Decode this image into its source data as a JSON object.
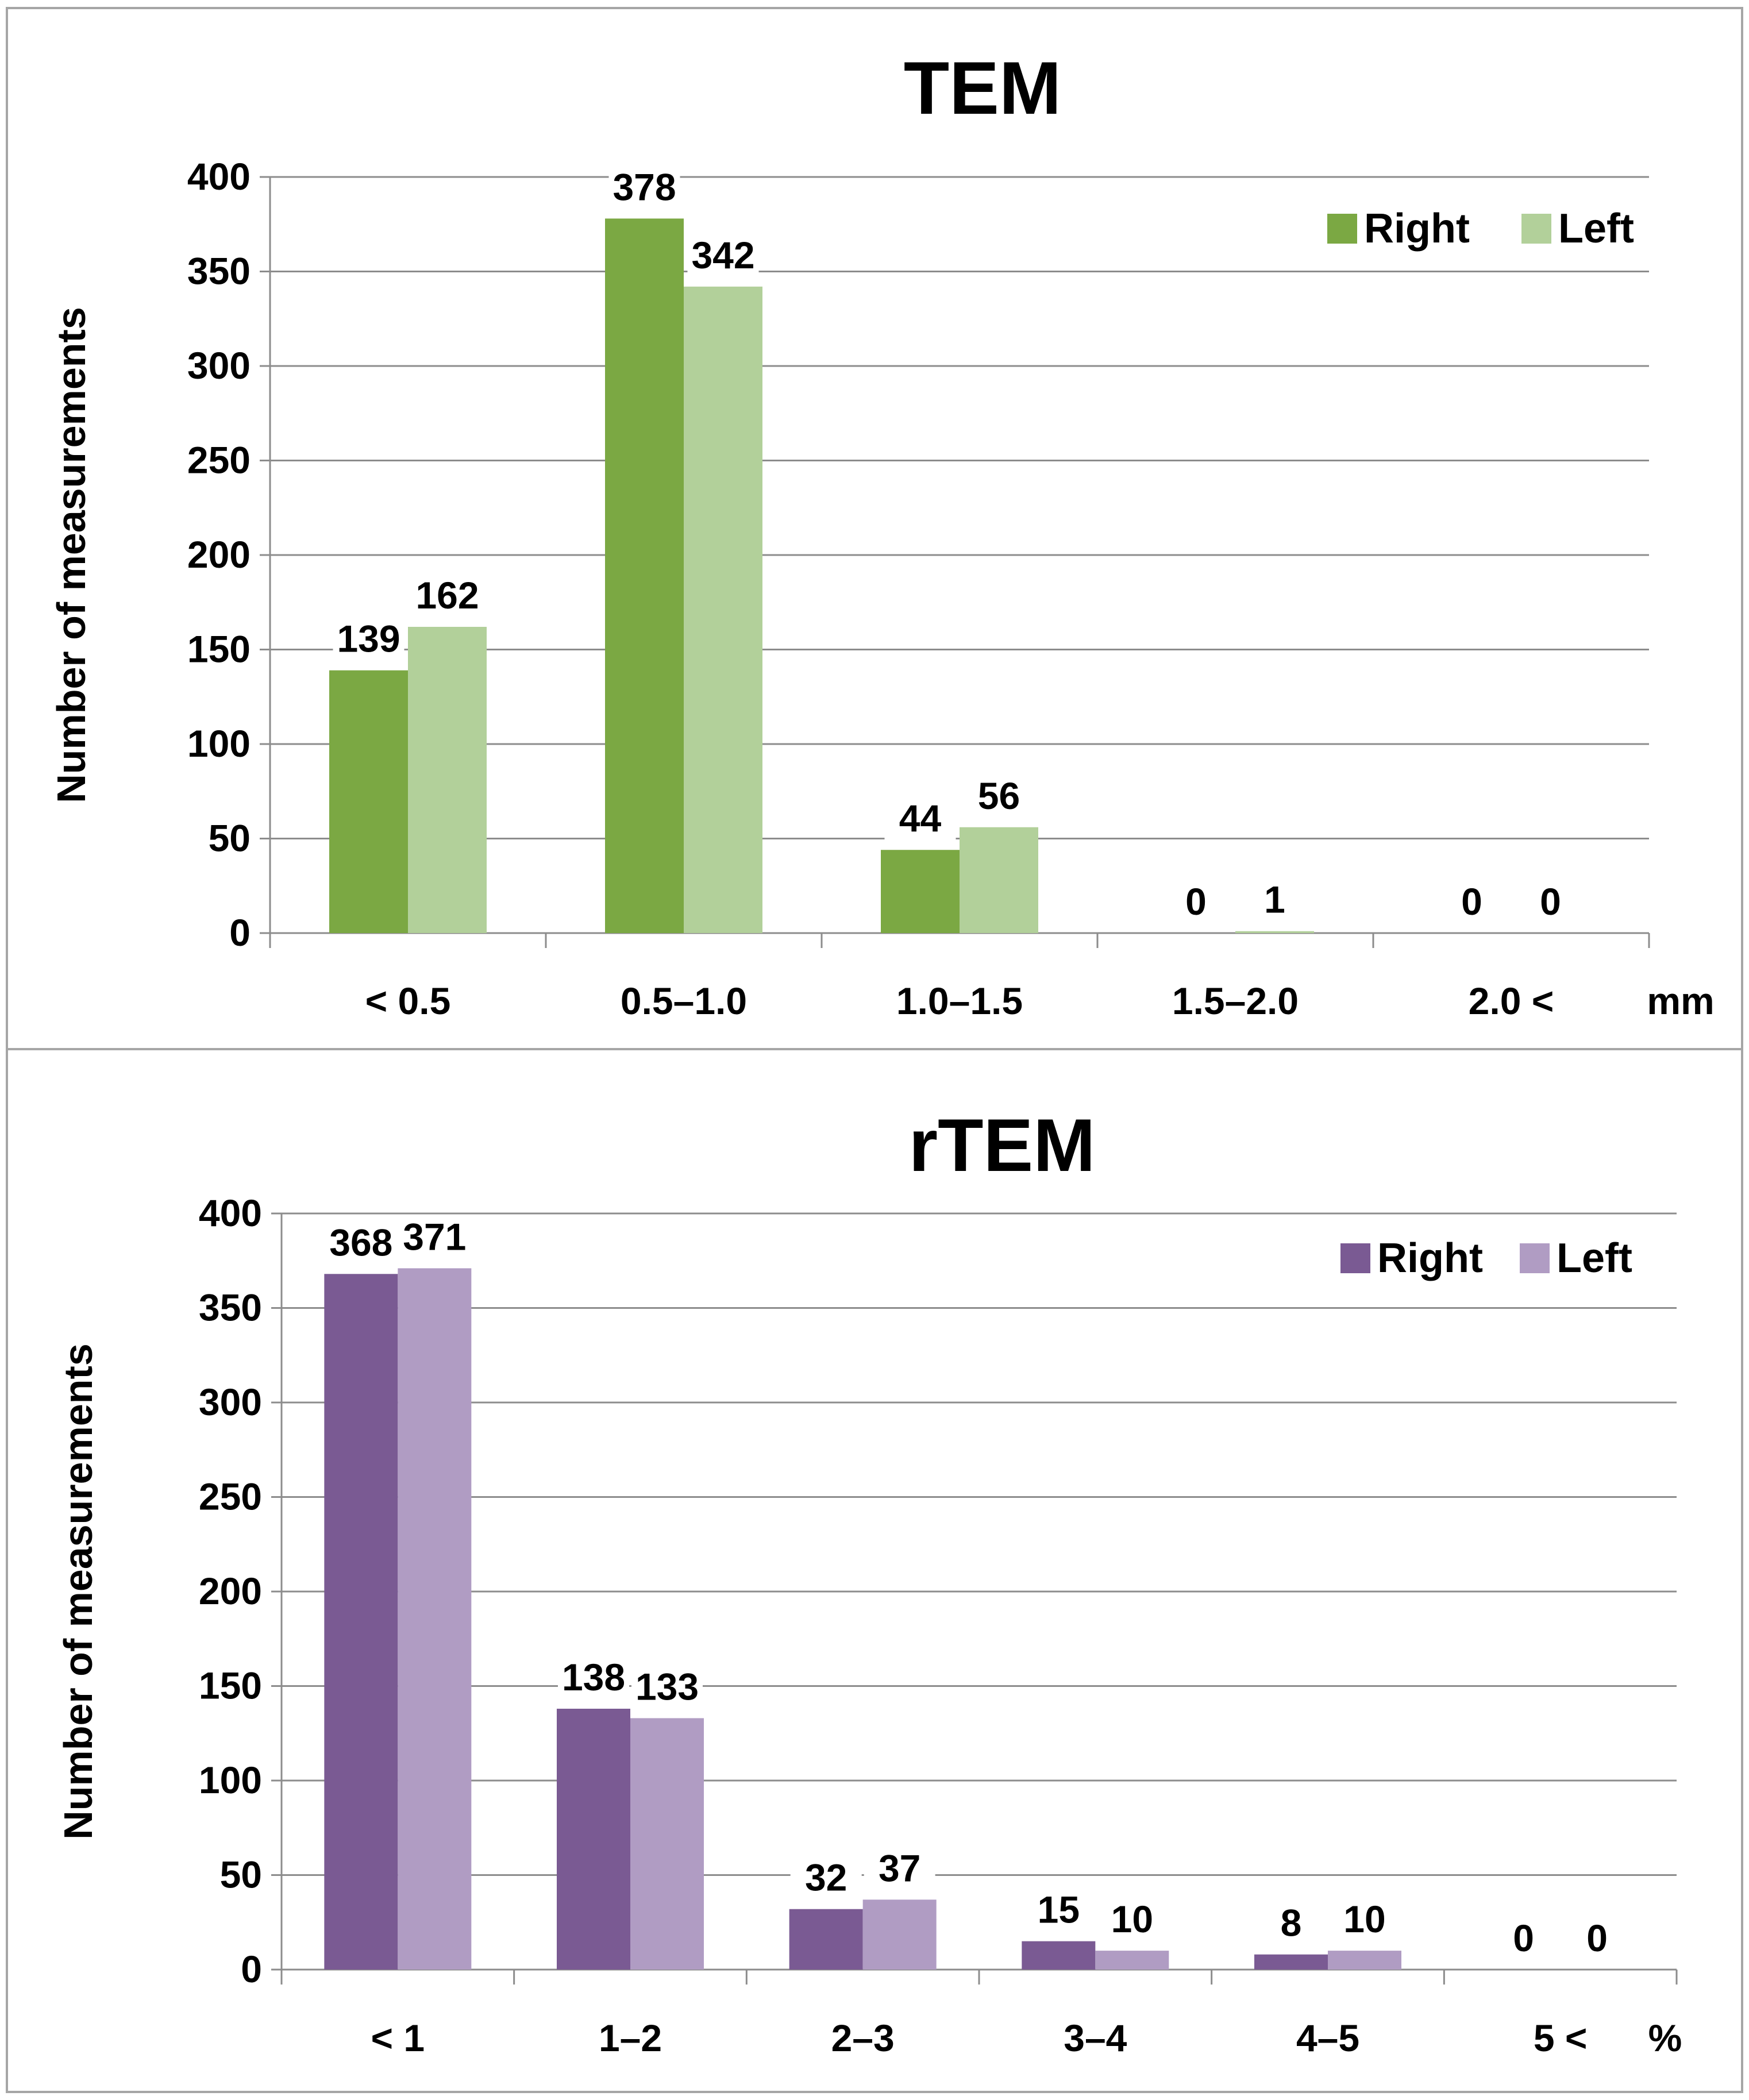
{
  "chart_data": [
    {
      "type": "bar",
      "title": "TEM",
      "ylabel": "Number of measurements",
      "xunit": "mm",
      "ylim": [
        0,
        400
      ],
      "yticks": [
        0,
        50,
        100,
        150,
        200,
        250,
        300,
        350,
        400
      ],
      "categories": [
        "< 0.5",
        "0.5–1.0",
        "1.0–1.5",
        "1.5–2.0",
        "2.0 <"
      ],
      "series": [
        {
          "name": "Right",
          "color": "#7ba843",
          "values": [
            139,
            378,
            44,
            0,
            0
          ]
        },
        {
          "name": "Left",
          "color": "#b2d09a",
          "values": [
            162,
            342,
            56,
            1,
            0
          ]
        }
      ],
      "grid": true,
      "legend": "top-right"
    },
    {
      "type": "bar",
      "title": "rTEM",
      "ylabel": "Number of measurements",
      "xunit": "%",
      "ylim": [
        0,
        400
      ],
      "yticks": [
        0,
        50,
        100,
        150,
        200,
        250,
        300,
        350,
        400
      ],
      "categories": [
        "< 1",
        "1–2",
        "2–3",
        "3–4",
        "4–5",
        "5 <"
      ],
      "series": [
        {
          "name": "Right",
          "color": "#7a5a93",
          "values": [
            368,
            138,
            32,
            15,
            8,
            0
          ]
        },
        {
          "name": "Left",
          "color": "#b09cc3",
          "values": [
            371,
            133,
            37,
            10,
            10,
            0
          ]
        }
      ],
      "grid": true,
      "legend": "top-right"
    }
  ]
}
